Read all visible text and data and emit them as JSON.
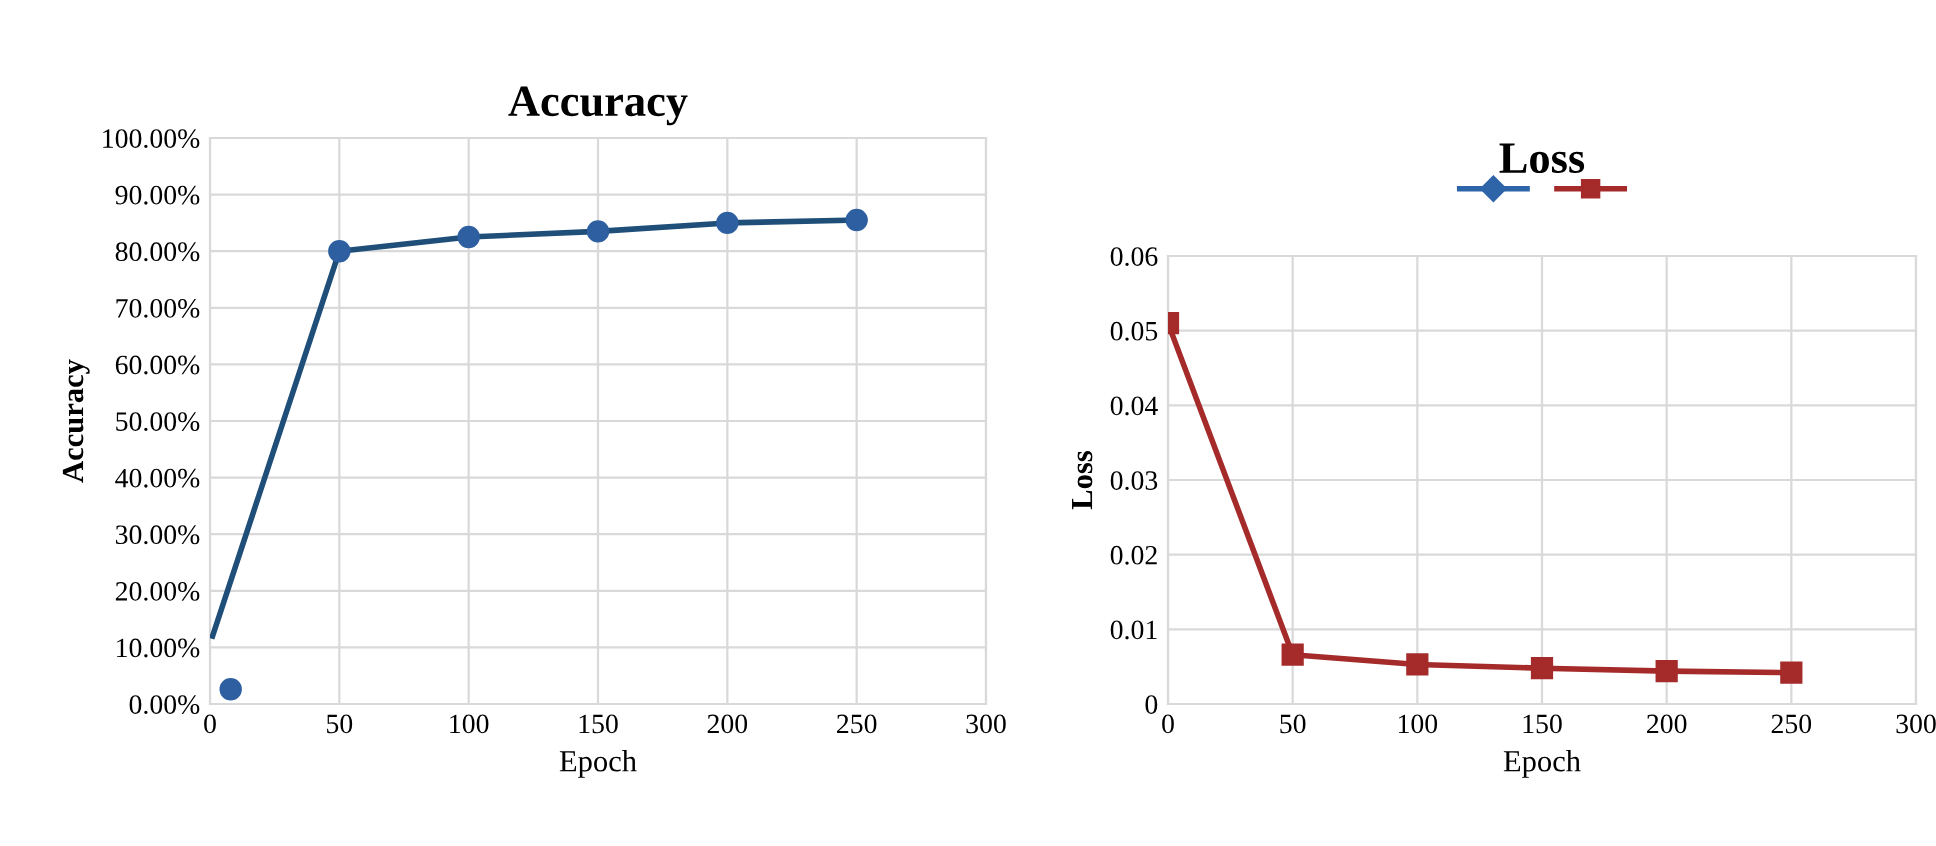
{
  "chart_data": [
    {
      "type": "line",
      "title": "Accuracy",
      "xlabel": "Epoch",
      "ylabel": "Accuracy",
      "xlim": [
        0,
        300
      ],
      "xticks": [
        0,
        50,
        100,
        150,
        200,
        250,
        300
      ],
      "ylim": [
        0,
        100
      ],
      "yticks": [
        {
          "value": 0,
          "label": "0.00%"
        },
        {
          "value": 10,
          "label": "10.00%"
        },
        {
          "value": 20,
          "label": "20.00%"
        },
        {
          "value": 30,
          "label": "30.00%"
        },
        {
          "value": 40,
          "label": "40.00%"
        },
        {
          "value": 50,
          "label": "50.00%"
        },
        {
          "value": 60,
          "label": "60.00%"
        },
        {
          "value": 70,
          "label": "70.00%"
        },
        {
          "value": 80,
          "label": "80.00%"
        },
        {
          "value": 90,
          "label": "90.00%"
        },
        {
          "value": 100,
          "label": "100.00%"
        }
      ],
      "grid": true,
      "series": [
        {
          "type": "line",
          "color": "#1f4e79",
          "marker": "none",
          "x": [
            1,
            50,
            100,
            150,
            200,
            250
          ],
          "values": [
            12,
            80,
            82.5,
            83.5,
            85,
            85.5
          ]
        },
        {
          "type": "scatter",
          "color": "#2e5fa0",
          "marker": "circle",
          "x": [
            8,
            50,
            100,
            150,
            200,
            250
          ],
          "values": [
            2.6,
            80,
            82.5,
            83.5,
            85,
            85.5
          ]
        }
      ]
    },
    {
      "type": "line",
      "title": "Loss",
      "xlabel": "Epoch",
      "ylabel": "Loss",
      "xlim": [
        0,
        300
      ],
      "xticks": [
        0,
        50,
        100,
        150,
        200,
        250,
        300
      ],
      "ylim": [
        0,
        0.06
      ],
      "yticks": [
        {
          "value": 0,
          "label": "0"
        },
        0.01,
        0.02,
        0.03,
        0.04,
        0.05,
        0.06
      ],
      "grid": true,
      "x": [
        0,
        50,
        100,
        150,
        200,
        250
      ],
      "series": [
        {
          "color": "#2e64a8",
          "marker": "diamond",
          "values": [
            null,
            null,
            null,
            null,
            null,
            null
          ]
        },
        {
          "color": "#a52a2a",
          "marker": "square",
          "values": [
            0.051,
            0.0066,
            0.0053,
            0.0048,
            0.0044,
            0.0042
          ]
        }
      ]
    }
  ]
}
